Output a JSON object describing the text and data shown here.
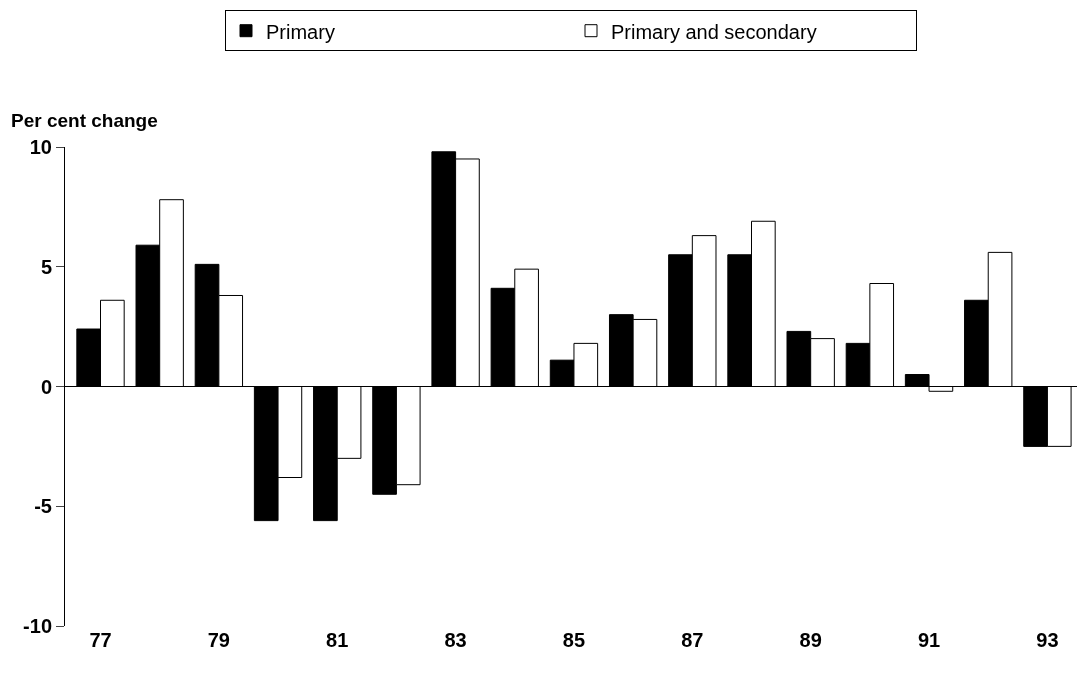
{
  "chart_data": {
    "type": "bar",
    "ylabel": "Per cent change",
    "categories": [
      "77",
      null,
      "79",
      null,
      "81",
      null,
      "83",
      null,
      "85",
      null,
      "87",
      null,
      "89",
      null,
      "91",
      null,
      "93"
    ],
    "series": [
      {
        "name": "Primary",
        "color": "#000000",
        "values": [
          2.4,
          5.9,
          5.1,
          -5.6,
          -5.6,
          -4.5,
          9.8,
          4.1,
          1.1,
          3.0,
          5.5,
          5.5,
          2.3,
          1.8,
          0.5,
          3.6,
          -2.5
        ]
      },
      {
        "name": "Primary and secondary",
        "color": "#ffffff",
        "values": [
          3.6,
          7.8,
          3.8,
          -3.8,
          -3.0,
          -4.1,
          9.5,
          4.9,
          1.8,
          2.8,
          6.3,
          6.9,
          2.0,
          4.3,
          -0.2,
          5.6,
          -2.5
        ]
      }
    ],
    "ref_lines": [
      {
        "axis": "y",
        "value": 0,
        "color": "#000000"
      }
    ],
    "ylim": [
      -10,
      10
    ],
    "yticks": [
      -10,
      -5,
      0,
      5,
      10
    ],
    "grid": false,
    "legend": "top"
  }
}
